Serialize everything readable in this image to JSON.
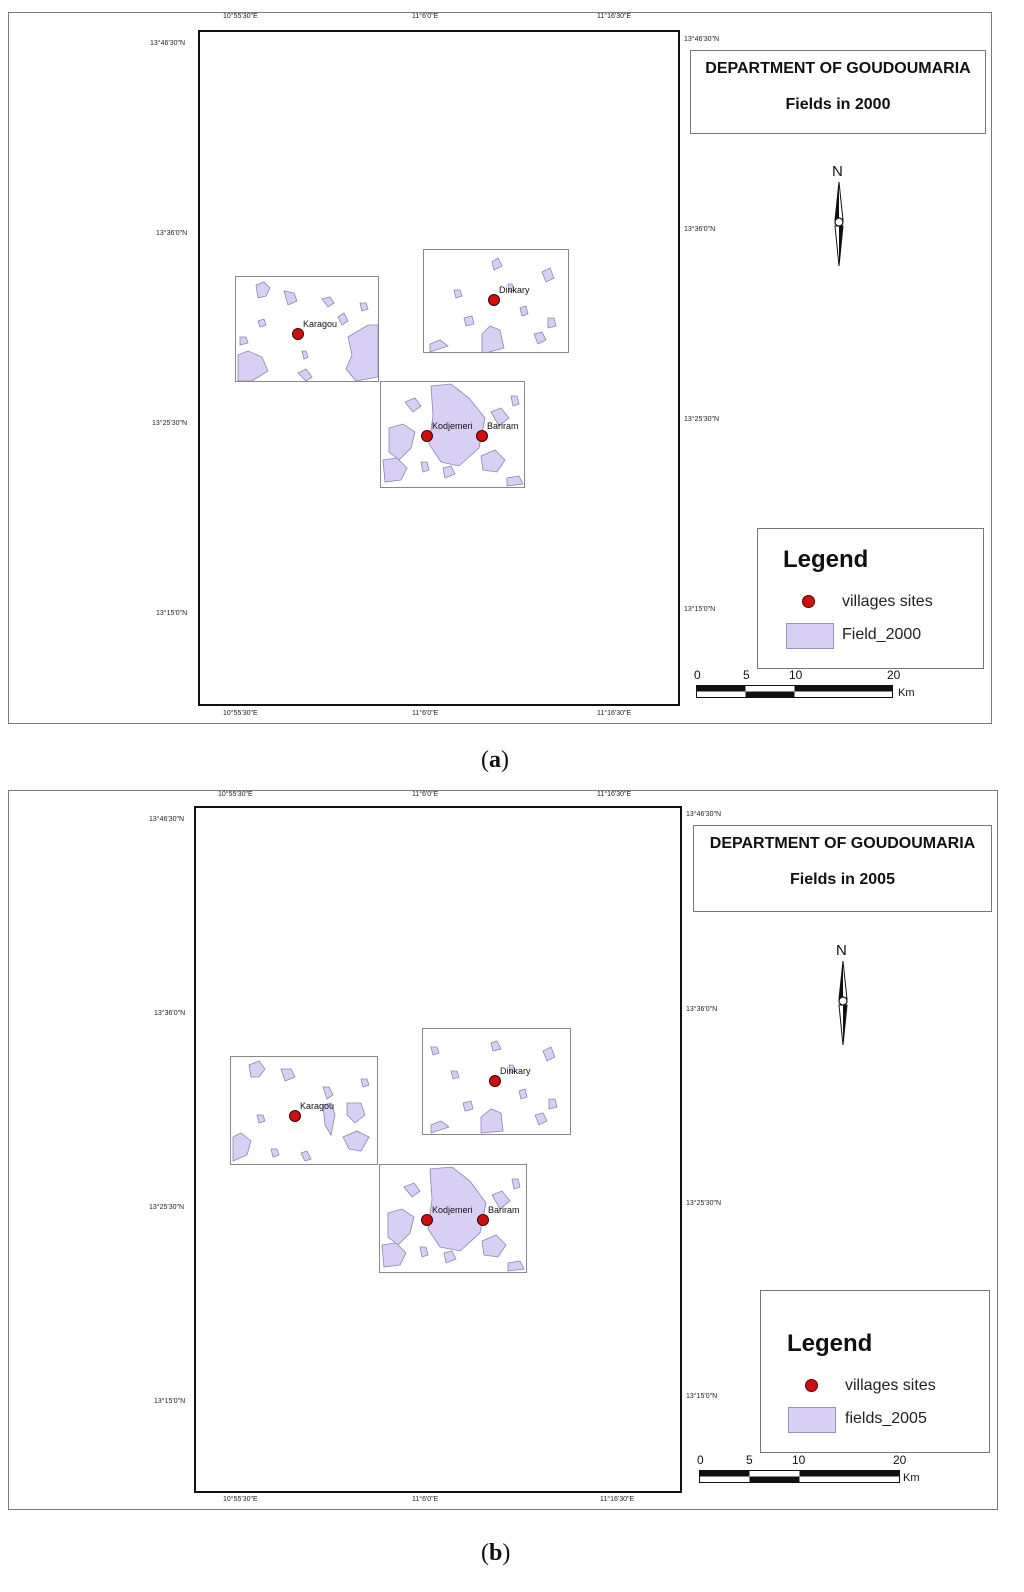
{
  "colors": {
    "field_fill": "#d7cff4",
    "field_outline": "#8c86aa",
    "village": "#cc1010",
    "frame": "#111111"
  },
  "panels": [
    {
      "caption_letter": "a",
      "title_line1": "DEPARTMENT OF GOUDOUMARIA",
      "title_line2": "Fields in 2000",
      "north_label": "N",
      "legend_title": "Legend",
      "legend_villages": "villages sites",
      "legend_fields": "Field_2000",
      "scale": {
        "labels": [
          "0",
          "5",
          "10",
          "20"
        ],
        "unit": "Km"
      },
      "top_ticks": [
        "10°55'30\"E",
        "11°6'0\"E",
        "11°16'30\"E"
      ],
      "bottom_ticks": [
        "10°55'30\"E",
        "11°6'0\"E",
        "11°16'30\"E"
      ],
      "left_ticks": [
        "13°46'30\"N",
        "13°36'0\"N",
        "13°25'30\"N",
        "13°15'0\"N"
      ],
      "right_ticks": [
        "13°46'30\"N",
        "13°36'0\"N",
        "13°25'30\"N",
        "13°15'0\"N"
      ],
      "villages": [
        "Karagou",
        "Dinkary",
        "Kodjemeri",
        "Bariram"
      ]
    },
    {
      "caption_letter": "b",
      "title_line1": "DEPARTMENT OF GOUDOUMARIA",
      "title_line2": "Fields in 2005",
      "north_label": "N",
      "legend_title": "Legend",
      "legend_villages": "villages sites",
      "legend_fields": "fields_2005",
      "scale": {
        "labels": [
          "0",
          "5",
          "10",
          "20"
        ],
        "unit": "Km"
      },
      "top_ticks": [
        "10°55'30\"E",
        "11°6'0\"E",
        "11°16'30\"E"
      ],
      "bottom_ticks": [
        "10°55'30\"E",
        "11°6'0\"E",
        "11°16'30\"E"
      ],
      "left_ticks": [
        "13°46'30\"N",
        "13°36'0\"N",
        "13°25'30\"N",
        "13°15'0\"N"
      ],
      "right_ticks": [
        "13°46'30\"N",
        "13°36'0\"N",
        "13°25'30\"N",
        "13°15'0\"N"
      ],
      "villages": [
        "Karagou",
        "Dinkary",
        "Kodjemeri",
        "Bariram"
      ]
    }
  ]
}
